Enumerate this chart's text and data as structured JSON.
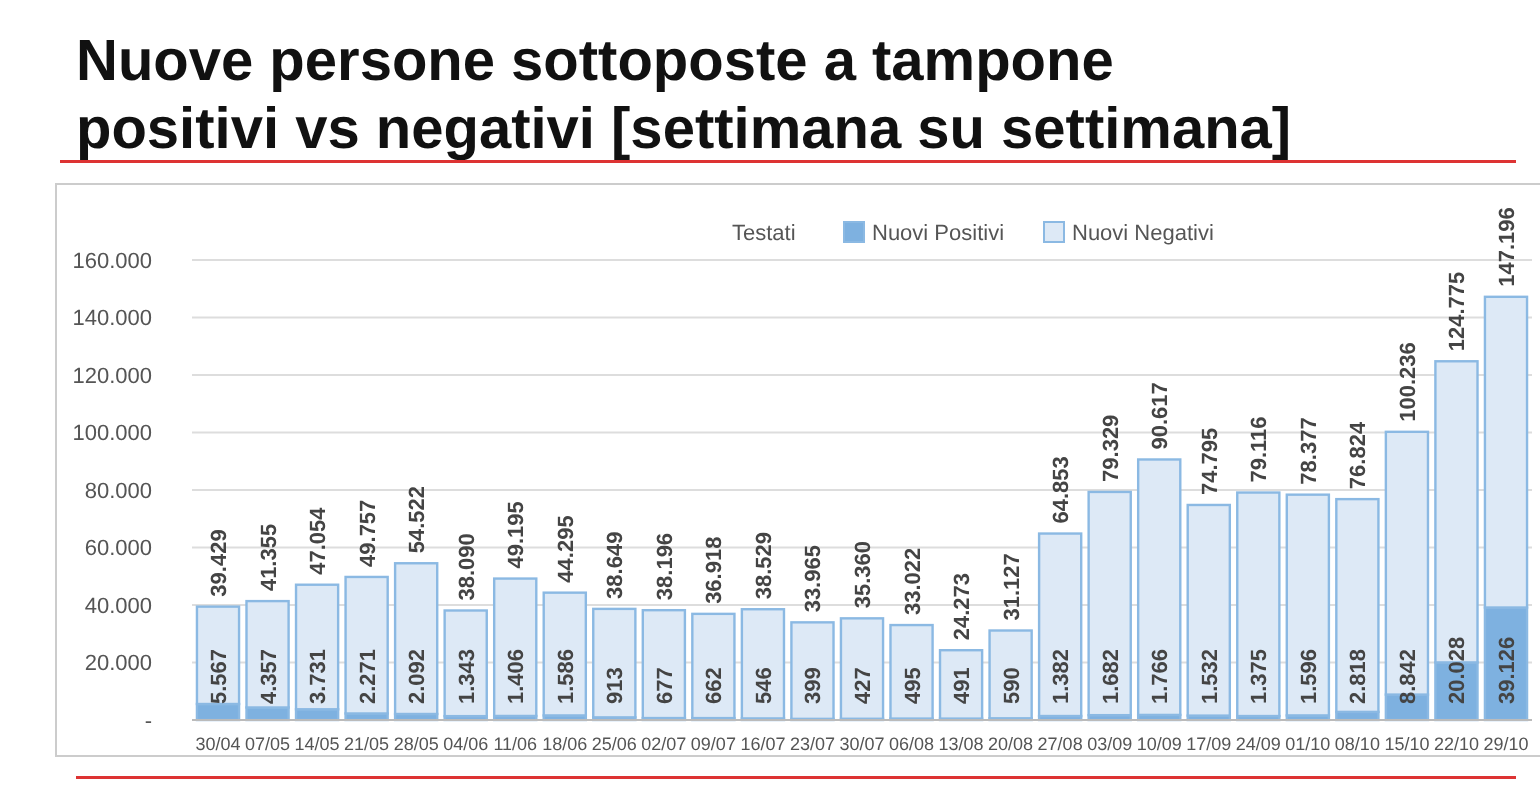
{
  "chart_data": {
    "type": "bar",
    "title": "Nuove persone sottoposte a tampone\npositivi vs negativi [settimana su settimana]",
    "legend_title": "Testati",
    "stacked": true,
    "categories": [
      "30/04",
      "07/05",
      "14/05",
      "21/05",
      "28/05",
      "04/06",
      "11/06",
      "18/06",
      "25/06",
      "02/07",
      "09/07",
      "16/07",
      "23/07",
      "30/07",
      "06/08",
      "13/08",
      "20/08",
      "27/08",
      "03/09",
      "10/09",
      "17/09",
      "24/09",
      "01/10",
      "08/10",
      "15/10",
      "22/10",
      "29/10"
    ],
    "series": [
      {
        "name": "Nuovi Positivi",
        "color": "#7eb1e0",
        "values": [
          5567,
          4357,
          3731,
          2271,
          2092,
          1343,
          1406,
          1586,
          913,
          677,
          662,
          546,
          399,
          427,
          495,
          491,
          590,
          1382,
          1682,
          1766,
          1532,
          1375,
          1596,
          2818,
          8842,
          20028,
          39126
        ],
        "value_labels": [
          "5.567",
          "4.357",
          "3.731",
          "2.271",
          "2.092",
          "1.343",
          "1.406",
          "1.586",
          "913",
          "677",
          "662",
          "546",
          "399",
          "427",
          "495",
          "491",
          "590",
          "1.382",
          "1.682",
          "1.766",
          "1.532",
          "1.375",
          "1.596",
          "2.818",
          "8.842",
          "20.028",
          "39.126"
        ]
      },
      {
        "name": "Nuovi Negativi",
        "color": "#dde9f6",
        "values": [
          33862,
          36998,
          43323,
          47486,
          52430,
          36747,
          47789,
          42709,
          37736,
          37519,
          36256,
          37983,
          33566,
          34933,
          32527,
          23782,
          30537,
          63471,
          77647,
          88851,
          73263,
          77741,
          76781,
          74006,
          91394,
          104747,
          108070
        ]
      }
    ],
    "totals": [
      "39.429",
      "41.355",
      "47.054",
      "49.757",
      "54.522",
      "38.090",
      "49.195",
      "44.295",
      "38.649",
      "38.196",
      "36.918",
      "38.529",
      "33.965",
      "35.360",
      "33.022",
      "24.273",
      "31.127",
      "64.853",
      "79.329",
      "90.617",
      "74.795",
      "79.116",
      "78.377",
      "76.824",
      "100.236",
      "124.775",
      "147.196"
    ],
    "ylim": [
      0,
      160000
    ],
    "yticks": [
      {
        "value": 0,
        "label": "-"
      },
      {
        "value": 20000,
        "label": "20.000"
      },
      {
        "value": 40000,
        "label": "40.000"
      },
      {
        "value": 60000,
        "label": "60.000"
      },
      {
        "value": 80000,
        "label": "80.000"
      },
      {
        "value": 100000,
        "label": "100.000"
      },
      {
        "value": 120000,
        "label": "120.000"
      },
      {
        "value": 140000,
        "label": "140.000"
      },
      {
        "value": 160000,
        "label": "160.000"
      }
    ],
    "grid": "y",
    "legend": "top right"
  }
}
